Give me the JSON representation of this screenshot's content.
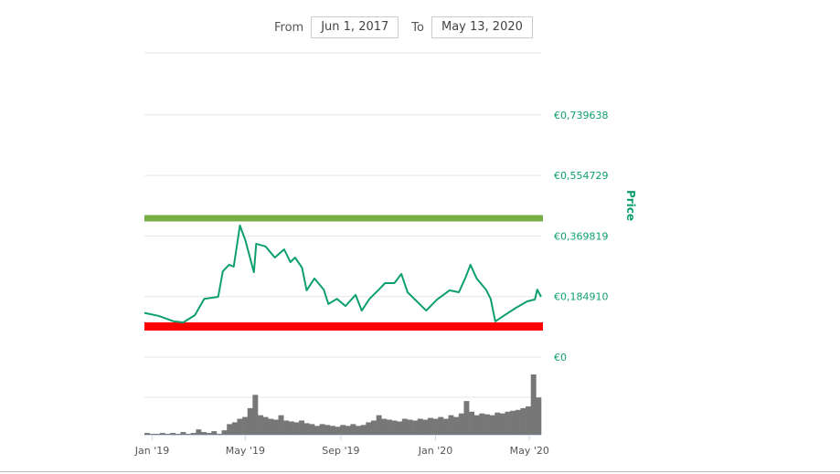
{
  "range_selector": {
    "from_label": "From",
    "from_value": "Jun 1, 2017",
    "to_label": "To",
    "to_value": "May 13, 2020"
  },
  "colors": {
    "price": "#0e9f6e",
    "resistance": "#77ad45",
    "support": "#ff0000",
    "volume": "#777777",
    "grid": "#e6e6e6"
  },
  "chart_data": {
    "type": "line",
    "title": "",
    "ylabel": "Price",
    "x_unit": "days since 2019-01-01",
    "ylim": [
      0,
      0.8
    ],
    "yticks": [
      {
        "v": 0,
        "label": "€0"
      },
      {
        "v": 0.18491,
        "label": "€0,184910"
      },
      {
        "v": 0.369819,
        "label": "€0,369819"
      },
      {
        "v": 0.554729,
        "label": "€0,554729"
      },
      {
        "v": 0.739638,
        "label": "€0,739638"
      }
    ],
    "xticks": [
      {
        "d": 0,
        "label": "Jan '19"
      },
      {
        "d": 120,
        "label": "May '19"
      },
      {
        "d": 243,
        "label": "Sep '19"
      },
      {
        "d": 365,
        "label": "Jan '20"
      },
      {
        "d": 486,
        "label": "May '20"
      }
    ],
    "xlim": [
      -10,
      501
    ],
    "resistance_level": 0.424,
    "support_level": 0.095,
    "price": [
      [
        -10,
        0.135
      ],
      [
        8,
        0.126
      ],
      [
        28,
        0.109
      ],
      [
        40,
        0.106
      ],
      [
        55,
        0.128
      ],
      [
        67,
        0.178
      ],
      [
        85,
        0.184
      ],
      [
        91,
        0.262
      ],
      [
        99,
        0.282
      ],
      [
        105,
        0.276
      ],
      [
        113,
        0.402
      ],
      [
        120,
        0.357
      ],
      [
        131,
        0.259
      ],
      [
        134,
        0.346
      ],
      [
        146,
        0.338
      ],
      [
        158,
        0.304
      ],
      [
        170,
        0.329
      ],
      [
        178,
        0.29
      ],
      [
        184,
        0.304
      ],
      [
        193,
        0.273
      ],
      [
        199,
        0.204
      ],
      [
        209,
        0.24
      ],
      [
        221,
        0.206
      ],
      [
        227,
        0.162
      ],
      [
        238,
        0.178
      ],
      [
        249,
        0.156
      ],
      [
        262,
        0.19
      ],
      [
        270,
        0.142
      ],
      [
        280,
        0.178
      ],
      [
        292,
        0.206
      ],
      [
        300,
        0.226
      ],
      [
        312,
        0.226
      ],
      [
        321,
        0.254
      ],
      [
        329,
        0.198
      ],
      [
        341,
        0.17
      ],
      [
        353,
        0.142
      ],
      [
        367,
        0.176
      ],
      [
        383,
        0.204
      ],
      [
        395,
        0.198
      ],
      [
        404,
        0.245
      ],
      [
        410,
        0.282
      ],
      [
        418,
        0.24
      ],
      [
        430,
        0.206
      ],
      [
        436,
        0.178
      ],
      [
        442,
        0.109
      ],
      [
        454,
        0.128
      ],
      [
        469,
        0.151
      ],
      [
        483,
        0.17
      ],
      [
        493,
        0.176
      ],
      [
        496,
        0.206
      ],
      [
        501,
        0.184
      ]
    ],
    "volume_relative": [
      2,
      1,
      1,
      2,
      1,
      2,
      1,
      3,
      1,
      2,
      6,
      3,
      2,
      4,
      1,
      5,
      12,
      14,
      18,
      20,
      30,
      45,
      22,
      20,
      18,
      17,
      22,
      16,
      15,
      14,
      16,
      13,
      12,
      10,
      12,
      11,
      10,
      9,
      11,
      10,
      12,
      10,
      11,
      14,
      16,
      22,
      18,
      17,
      16,
      15,
      18,
      17,
      16,
      18,
      17,
      19,
      18,
      20,
      18,
      22,
      20,
      24,
      38,
      26,
      22,
      24,
      23,
      22,
      25,
      24,
      26,
      27,
      28,
      30,
      32,
      68,
      42
    ]
  }
}
